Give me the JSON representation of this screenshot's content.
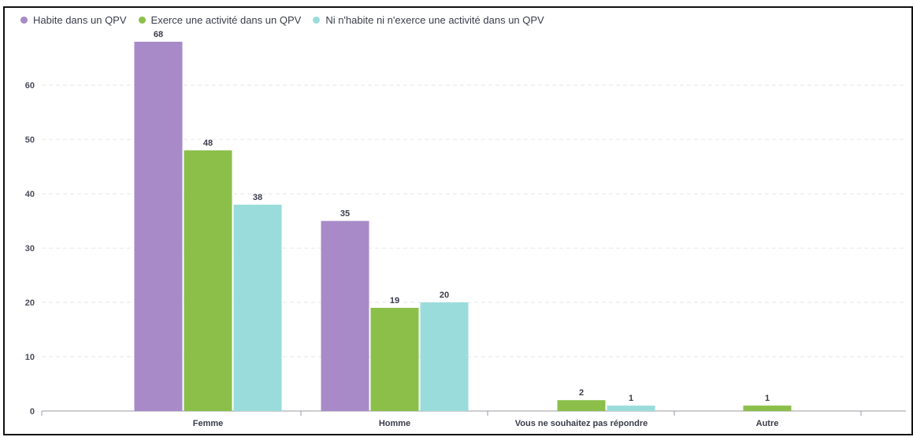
{
  "chart_data": {
    "type": "bar",
    "title": "",
    "xlabel": "",
    "ylabel": "",
    "ylim": [
      0,
      70
    ],
    "yticks": [
      0,
      10,
      20,
      30,
      40,
      50,
      60
    ],
    "grid": true,
    "legend_position": "top-left",
    "categories": [
      "Femme",
      "Homme",
      "Vous ne souhaitez pas répondre",
      "Autre"
    ],
    "series": [
      {
        "name": "Habite dans un QPV",
        "color": "#a78ac7",
        "values": [
          68,
          35,
          null,
          null
        ]
      },
      {
        "name": "Exerce une activité dans un QPV",
        "color": "#8bbf4a",
        "values": [
          48,
          19,
          2,
          1
        ]
      },
      {
        "name": "Ni n'habite ni n'exerce une activité dans un QPV",
        "color": "#9adcdb",
        "values": [
          38,
          20,
          1,
          null
        ]
      }
    ]
  }
}
